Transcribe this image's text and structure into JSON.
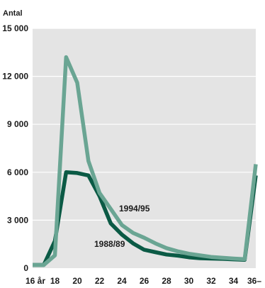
{
  "chart_data": {
    "type": "line",
    "ylabel": "Antal",
    "ylim": [
      0,
      15000
    ],
    "xlim": [
      16,
      36
    ],
    "grid": "horizontal",
    "background": "#e4e4e4",
    "yticks": [
      {
        "value": 0,
        "label": "0"
      },
      {
        "value": 3000,
        "label": "3 000"
      },
      {
        "value": 6000,
        "label": "6 000"
      },
      {
        "value": 9000,
        "label": "9 000"
      },
      {
        "value": 12000,
        "label": "12 000"
      },
      {
        "value": 15000,
        "label": "15 000"
      }
    ],
    "xticks": [
      {
        "value": 16,
        "label": "16 år"
      },
      {
        "value": 18,
        "label": "18"
      },
      {
        "value": 20,
        "label": "20"
      },
      {
        "value": 22,
        "label": "22"
      },
      {
        "value": 24,
        "label": "24"
      },
      {
        "value": 26,
        "label": "26"
      },
      {
        "value": 28,
        "label": "28"
      },
      {
        "value": 30,
        "label": "30"
      },
      {
        "value": 32,
        "label": "32"
      },
      {
        "value": 34,
        "label": "34"
      },
      {
        "value": 36,
        "label": "36–"
      }
    ],
    "x": [
      16,
      17,
      18,
      19,
      20,
      21,
      22,
      23,
      24,
      25,
      26,
      27,
      28,
      29,
      30,
      31,
      32,
      33,
      34,
      35,
      36
    ],
    "series": [
      {
        "name": "1988/89",
        "color": "#0b5a45",
        "values": [
          200,
          200,
          1700,
          6000,
          5950,
          5800,
          4500,
          2800,
          2100,
          1550,
          1150,
          1000,
          850,
          780,
          680,
          620,
          600,
          580,
          550,
          520,
          5800
        ]
      },
      {
        "name": "1994/95",
        "color": "#6aa593",
        "values": [
          200,
          200,
          800,
          13200,
          11600,
          6700,
          4700,
          3700,
          2700,
          2200,
          1900,
          1550,
          1250,
          1050,
          900,
          800,
          700,
          650,
          600,
          560,
          6500
        ]
      }
    ]
  }
}
